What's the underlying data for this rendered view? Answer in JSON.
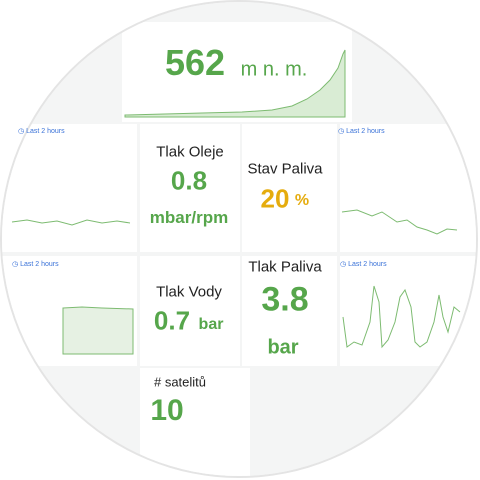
{
  "panels": [
    {
      "value": 562,
      "unit": "m n. m."
    },
    {
      "title": "Tlak Oleje",
      "value": 0.8,
      "unit": "mbar/rpm"
    },
    {
      "title": "Stav Paliva",
      "value": 20,
      "unit": "%"
    },
    {
      "title": "Tlak Vody",
      "value": 0.7,
      "unit": "bar"
    },
    {
      "title": "Tlak Paliva",
      "value": 3.8,
      "unit": "bar"
    },
    {
      "title": "# satelitů",
      "value": 10
    }
  ],
  "time_ranges": [
    "Last 2 hours",
    "Last 2 hours",
    "Last 2 hours",
    "Last 2 hours"
  ]
}
